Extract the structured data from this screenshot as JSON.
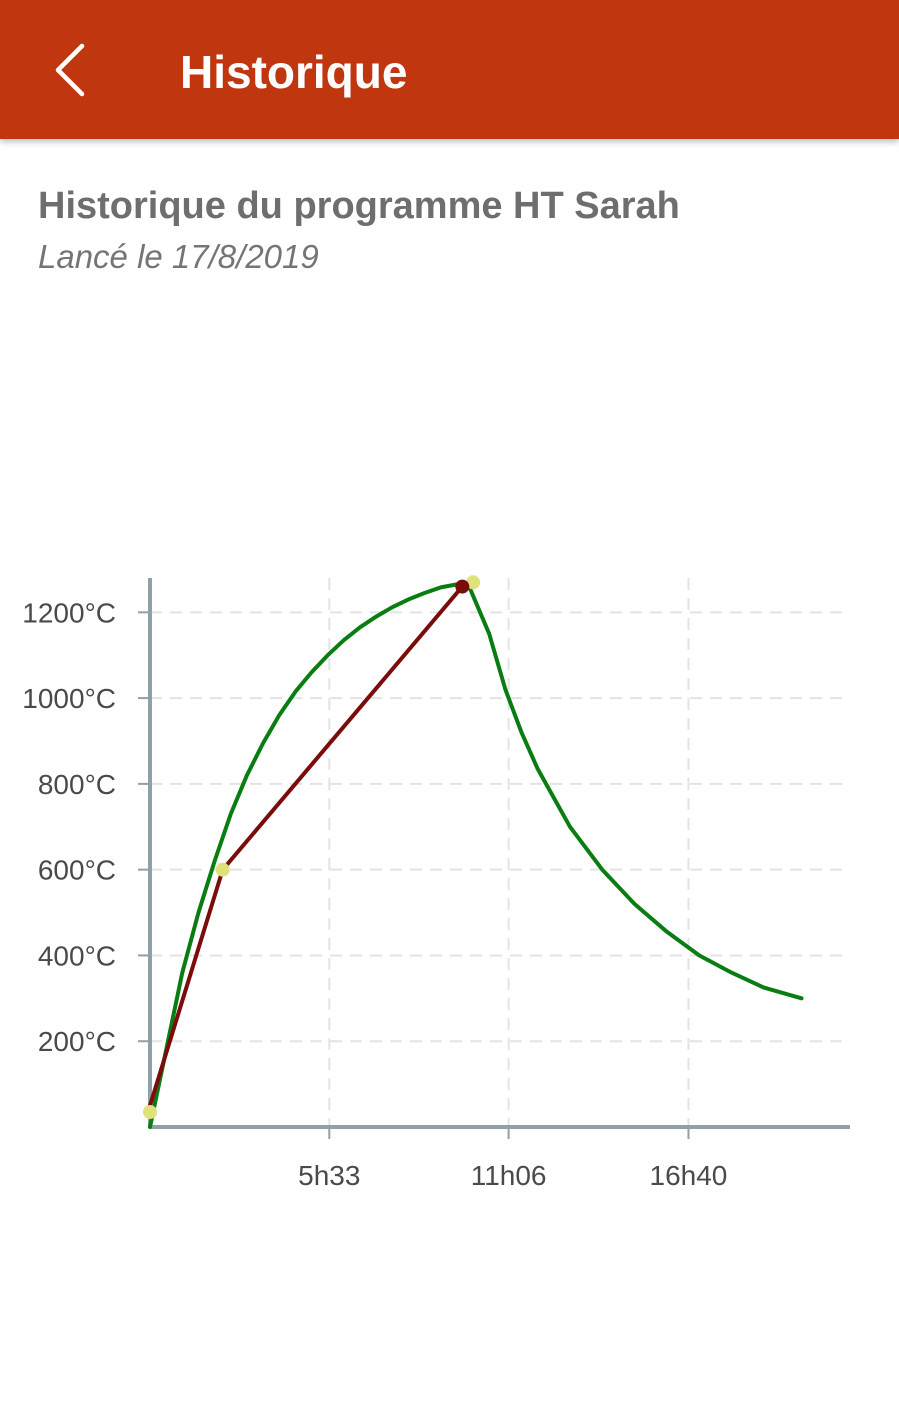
{
  "appbar": {
    "title": "Historique",
    "back_icon": "chevron-left-icon",
    "background_color": "#c0360f"
  },
  "header": {
    "title": "Historique du programme HT Sarah",
    "subtitle": "Lancé le 17/8/2019"
  },
  "chart_data": {
    "type": "line",
    "title": "",
    "xlabel": "",
    "ylabel": "",
    "x_unit": "minutes",
    "xlim": [
      0,
      1300
    ],
    "ylim": [
      0,
      1280
    ],
    "x_ticks": [
      {
        "value": 333,
        "label": "5h33"
      },
      {
        "value": 666,
        "label": "11h06"
      },
      {
        "value": 1000,
        "label": "16h40"
      }
    ],
    "y_ticks": [
      {
        "value": 200,
        "label": "200°C"
      },
      {
        "value": 400,
        "label": "400°C"
      },
      {
        "value": 600,
        "label": "600°C"
      },
      {
        "value": 800,
        "label": "800°C"
      },
      {
        "value": 1000,
        "label": "1000°C"
      },
      {
        "value": 1200,
        "label": "1200°C"
      }
    ],
    "grid": true,
    "series": [
      {
        "color": "#0a7d12",
        "points": [
          [
            0,
            0
          ],
          [
            30,
            180
          ],
          [
            60,
            360
          ],
          [
            90,
            500
          ],
          [
            120,
            620
          ],
          [
            150,
            730
          ],
          [
            180,
            820
          ],
          [
            210,
            895
          ],
          [
            240,
            960
          ],
          [
            270,
            1015
          ],
          [
            300,
            1060
          ],
          [
            330,
            1100
          ],
          [
            360,
            1135
          ],
          [
            390,
            1165
          ],
          [
            420,
            1190
          ],
          [
            450,
            1212
          ],
          [
            480,
            1230
          ],
          [
            510,
            1245
          ],
          [
            540,
            1258
          ],
          [
            570,
            1265
          ],
          [
            590,
            1268
          ],
          [
            630,
            1150
          ],
          [
            660,
            1020
          ],
          [
            690,
            920
          ],
          [
            720,
            835
          ],
          [
            780,
            700
          ],
          [
            840,
            600
          ],
          [
            900,
            520
          ],
          [
            960,
            455
          ],
          [
            1020,
            400
          ],
          [
            1080,
            360
          ],
          [
            1140,
            325
          ],
          [
            1210,
            300
          ]
        ]
      },
      {
        "color": "#7b0c0c",
        "points": [
          [
            0,
            50
          ],
          [
            135,
            600
          ],
          [
            580,
            1260
          ]
        ]
      }
    ],
    "markers": [
      {
        "x": 0,
        "y": 35,
        "color": "#dde27a"
      },
      {
        "x": 135,
        "y": 600,
        "color": "#dde27a"
      },
      {
        "x": 600,
        "y": 1270,
        "color": "#dde27a"
      },
      {
        "x": 580,
        "y": 1260,
        "color": "#7b0c0c"
      }
    ],
    "colors": {
      "axis": "#8fa0a8",
      "grid": "#e3e3e3"
    }
  }
}
